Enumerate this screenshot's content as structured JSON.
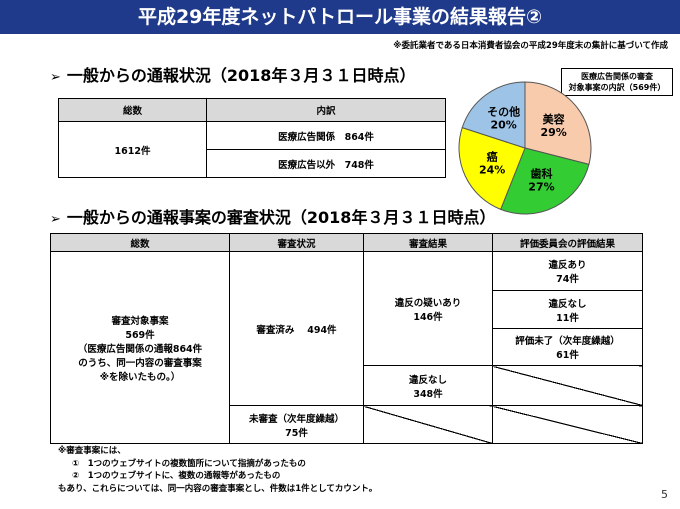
{
  "title": "平成29年度ネットパトロール事業の結果報告②",
  "source_note": "※委託業者である日本消費者協会の平成29年度末の集計に基づいて作成",
  "section1": {
    "heading": "一般からの通報状況（2018年３月３１日時点）",
    "headers": [
      "総数",
      "内訳"
    ],
    "total": "1612件",
    "breakdown": [
      "医療広告関係　864件",
      "医療広告以外　748件"
    ]
  },
  "pie": {
    "label_lines": [
      "医療広告関係の審査",
      "対象事案の内訳（569件）"
    ],
    "slices": [
      {
        "name": "美容",
        "pct": "29%",
        "value": 29,
        "color": "#f8cbad"
      },
      {
        "name": "歯科",
        "pct": "27%",
        "value": 27,
        "color": "#33cc33"
      },
      {
        "name": "癌",
        "pct": "24%",
        "value": 24,
        "color": "#ffff00"
      },
      {
        "name": "その他",
        "pct": "20%",
        "value": 20,
        "color": "#9dc3e6"
      }
    ]
  },
  "section2": {
    "heading": "一般からの通報事案の審査状況（2018年３月３１日時点）",
    "headers": [
      "総数",
      "審査状況",
      "審査結果",
      "評価委員会の評価結果"
    ],
    "total_lines": [
      "審査対象事案",
      "569件",
      "（医療広告関係の通報864件",
      "のうち、同一内容の審査事案",
      "※を除いたもの。）"
    ],
    "reviewed": "審査済み　 494件",
    "suspected": [
      "違反の疑いあり",
      "146件"
    ],
    "violation": [
      "違反あり",
      "74件"
    ],
    "no_violation_eval": [
      "違反なし",
      "11件"
    ],
    "pending_eval": [
      "評価未了（次年度繰越）",
      "61件"
    ],
    "no_violation": [
      "違反なし",
      "348件"
    ],
    "unreviewed": [
      "未審査（次年度繰越）",
      "75件"
    ]
  },
  "footnote": [
    "※審査事案には、",
    "①　1つのウェブサイトの複数箇所について指摘があったもの",
    "②　1つのウェブサイトに、複数の通報等があったもの",
    "もあり、これらについては、同一内容の審査事案とし、件数は1件としてカウント。"
  ],
  "page_number": "5"
}
